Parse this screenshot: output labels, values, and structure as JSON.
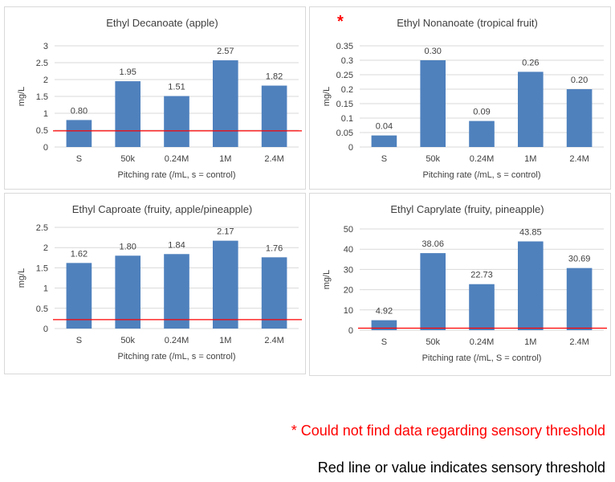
{
  "colors": {
    "bar": "#4f81bd",
    "threshold": "#ff0000",
    "grid": "#d9d9d9"
  },
  "notes": {
    "asterisk": "*",
    "red_note": "* Could not find data regarding sensory threshold",
    "black_note": "Red line or value indicates sensory threshold"
  },
  "chart_data": [
    {
      "type": "bar",
      "title": "Ethyl Decanoate (apple)",
      "ylabel": "mg/L",
      "xlabel": "Pitching rate (/mL, s = control)",
      "categories": [
        "S",
        "50k",
        "0.24M",
        "1M",
        "2.4M"
      ],
      "values": [
        0.8,
        1.95,
        1.51,
        2.57,
        1.82
      ],
      "value_labels": [
        "0.80",
        "1.95",
        "1.51",
        "2.57",
        "1.82"
      ],
      "ylim": [
        0,
        3
      ],
      "yticks": [
        0,
        0.5,
        1,
        1.5,
        2,
        2.5,
        3
      ],
      "ytick_labels": [
        "0",
        "0.5",
        "1",
        "1.5",
        "2",
        "2.5",
        "3"
      ],
      "threshold": 0.48,
      "grid": true
    },
    {
      "type": "bar",
      "title": "Ethyl Nonanoate (tropical fruit)",
      "ylabel": "mg/L",
      "xlabel": "Pitching rate (/mL, s = control)",
      "categories": [
        "S",
        "50k",
        "0.24M",
        "1M",
        "2.4M"
      ],
      "values": [
        0.04,
        0.3,
        0.09,
        0.26,
        0.2
      ],
      "value_labels": [
        "0.04",
        "0.30",
        "0.09",
        "0.26",
        "0.20"
      ],
      "ylim": [
        0,
        0.35
      ],
      "yticks": [
        0,
        0.05,
        0.1,
        0.15,
        0.2,
        0.25,
        0.3,
        0.35
      ],
      "ytick_labels": [
        "0",
        "0.05",
        "0.1",
        "0.15",
        "0.2",
        "0.25",
        "0.3",
        "0.35"
      ],
      "threshold": null,
      "grid": true
    },
    {
      "type": "bar",
      "title": "Ethyl Caproate (fruity, apple/pineapple)",
      "ylabel": "mg/L",
      "xlabel": "Pitching rate (/mL, s = control)",
      "categories": [
        "S",
        "50k",
        "0.24M",
        "1M",
        "2.4M"
      ],
      "values": [
        1.62,
        1.8,
        1.84,
        2.17,
        1.76
      ],
      "value_labels": [
        "1.62",
        "1.80",
        "1.84",
        "2.17",
        "1.76"
      ],
      "ylim": [
        0,
        2.5
      ],
      "yticks": [
        0,
        0.5,
        1,
        1.5,
        2,
        2.5
      ],
      "ytick_labels": [
        "0",
        "0.5",
        "1",
        "1.5",
        "2",
        "2.5"
      ],
      "threshold": 0.22,
      "grid": true
    },
    {
      "type": "bar",
      "title": "Ethyl Caprylate (fruity, pineapple)",
      "ylabel": "mg/L",
      "xlabel": "Pitching rate (/mL, S = control)",
      "categories": [
        "S",
        "50k",
        "0.24M",
        "1M",
        "2.4M"
      ],
      "values": [
        4.92,
        38.06,
        22.73,
        43.85,
        30.69
      ],
      "value_labels": [
        "4.92",
        "38.06",
        "22.73",
        "43.85",
        "30.69"
      ],
      "ylim": [
        0,
        50
      ],
      "yticks": [
        0,
        10,
        20,
        30,
        40,
        50
      ],
      "ytick_labels": [
        "0",
        "10",
        "20",
        "30",
        "40",
        "50"
      ],
      "threshold": 1,
      "grid": true
    }
  ]
}
